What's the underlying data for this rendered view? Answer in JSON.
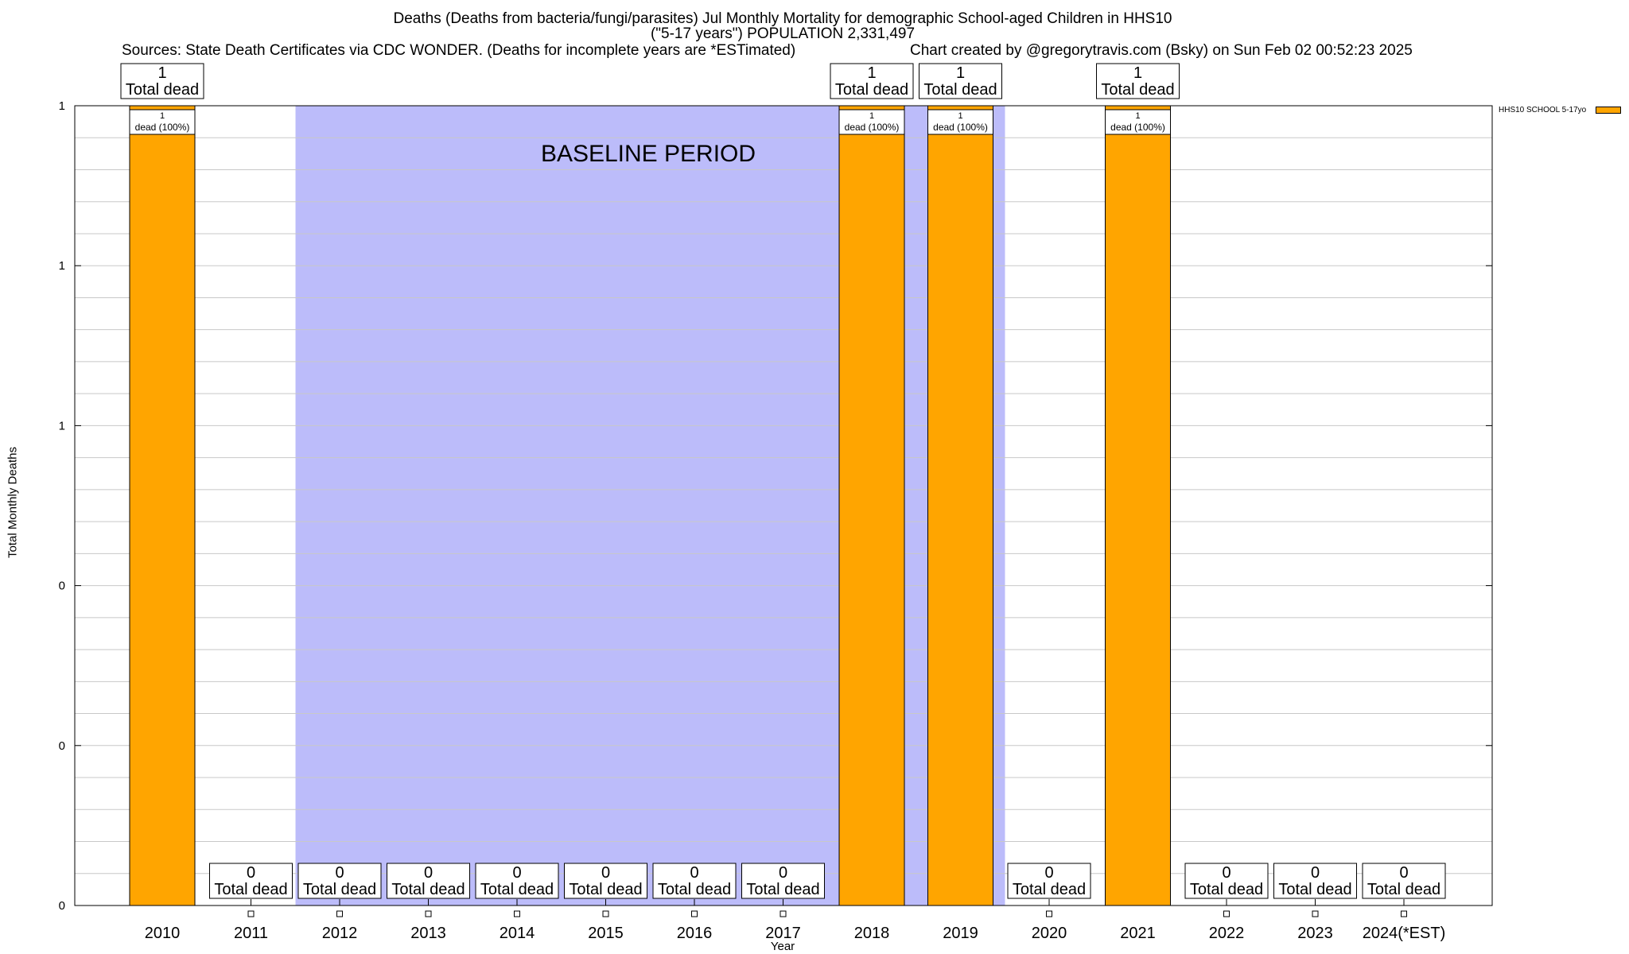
{
  "header": {
    "title_line1": "Deaths (Deaths from bacteria/fungi/parasites) Jul Monthly Mortality for demographic School-aged Children in HHS10",
    "title_line2": "(\"5-17 years\") POPULATION 2,331,497",
    "sources": "Sources: State Death Certificates via CDC WONDER. (Deaths for incomplete years are *ESTimated)",
    "credit": "Chart created by @gregorytravis.com (Bsky) on Sun Feb 02 00:52:23 2025"
  },
  "chart_data": {
    "type": "bar",
    "categories": [
      "2010",
      "2011",
      "2012",
      "2013",
      "2014",
      "2015",
      "2016",
      "2017",
      "2018",
      "2019",
      "2020",
      "2021",
      "2022",
      "2023",
      "2024(*EST)"
    ],
    "series": [
      {
        "name": "HHS10 SCHOOL 5-17yo",
        "values": [
          1,
          0,
          0,
          0,
          0,
          0,
          0,
          0,
          1,
          1,
          0,
          1,
          0,
          0,
          0
        ]
      }
    ],
    "ylim": [
      0,
      1
    ],
    "y_tick_labels": [
      "0",
      "0",
      "0",
      "1",
      "1",
      "1"
    ],
    "xlabel": "Year",
    "ylabel": "Total Monthly Deaths",
    "total_label_suffix": "Total dead",
    "inner_labels": [
      "1\ndead (100%)",
      "",
      "",
      "",
      "",
      "",
      "",
      "",
      "1\ndead (100%)",
      "1\ndead (100%)",
      "",
      "1\ndead (100%)",
      "",
      "",
      ""
    ],
    "shaded_region": {
      "label": "BASELINE PERIOD",
      "from": "2011",
      "to": "2019"
    },
    "legend_position": "top-right",
    "grid": true,
    "colors": {
      "bar": "#ffa500",
      "baseline": "#bcbcfa",
      "grid": "#c8c8c8"
    }
  }
}
